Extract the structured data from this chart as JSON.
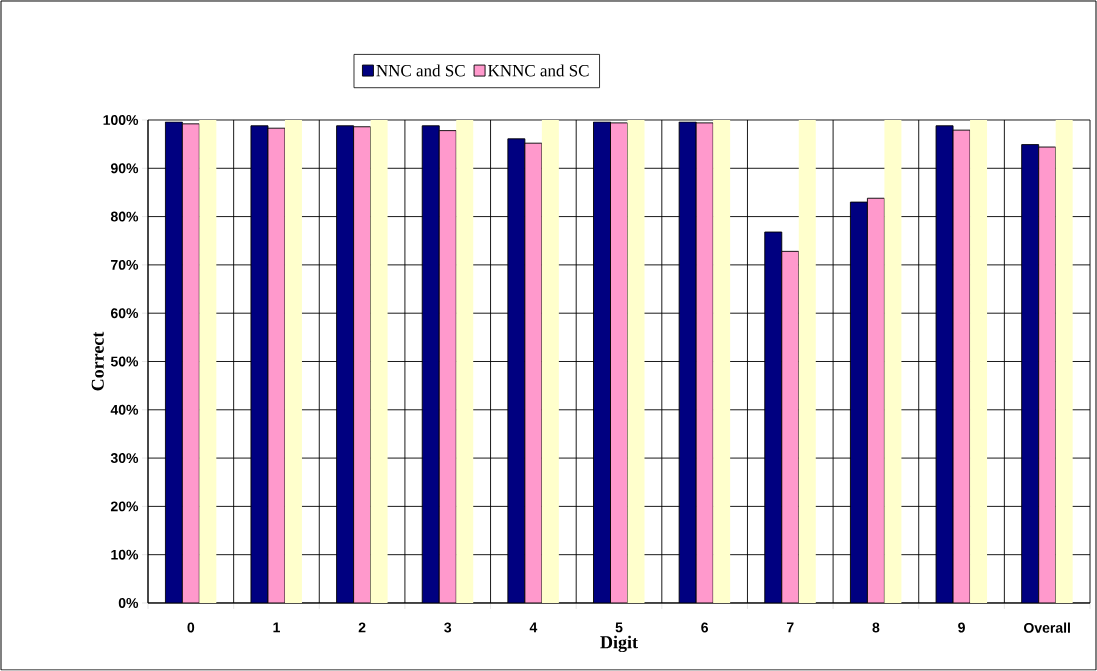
{
  "chart_data": {
    "type": "bar",
    "xlabel": "Digit",
    "ylabel": "Correct",
    "categories": [
      "0",
      "1",
      "2",
      "3",
      "4",
      "5",
      "6",
      "7",
      "8",
      "9",
      "Overall"
    ],
    "series": [
      {
        "name": "NNC and SC",
        "color": "#000080",
        "values": [
          99.6,
          98.8,
          98.8,
          98.8,
          96.1,
          99.6,
          99.6,
          76.8,
          83.0,
          98.8,
          94.9
        ]
      },
      {
        "name": "KNNC and SC",
        "color": "#ff99cc",
        "values": [
          99.2,
          98.3,
          98.6,
          97.8,
          95.2,
          99.4,
          99.4,
          72.8,
          83.8,
          97.9,
          94.4
        ]
      },
      {
        "color": "#ffffcc",
        "values": [
          100,
          100,
          100,
          100,
          100,
          100,
          100,
          100,
          100,
          100,
          100
        ]
      }
    ],
    "ylim": [
      0,
      100
    ],
    "yticks": [
      {
        "value": 0,
        "label": "0%"
      },
      {
        "value": 10,
        "label": "10%"
      },
      {
        "value": 20,
        "label": "20%"
      },
      {
        "value": 30,
        "label": "30%"
      },
      {
        "value": 40,
        "label": "40%"
      },
      {
        "value": 50,
        "label": "50%"
      },
      {
        "value": 60,
        "label": "60%"
      },
      {
        "value": 70,
        "label": "70%"
      },
      {
        "value": 80,
        "label": "80%"
      },
      {
        "value": 90,
        "label": "90%"
      },
      {
        "value": 100,
        "label": "100%"
      }
    ],
    "grid": true,
    "legend": "top"
  }
}
